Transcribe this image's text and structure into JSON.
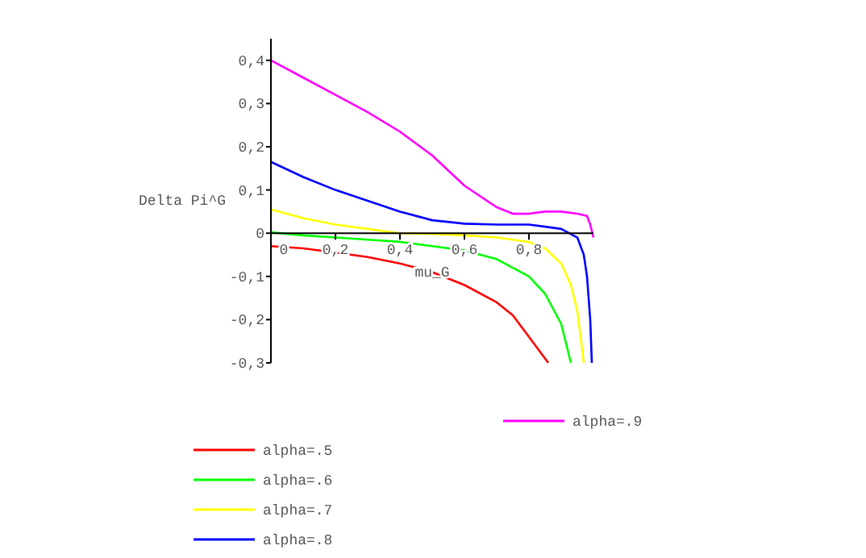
{
  "chart_data": {
    "type": "line",
    "xlabel": "mu_G",
    "ylabel": "Delta Pi^G",
    "xlim": [
      0,
      1
    ],
    "ylim": [
      -0.3,
      0.45
    ],
    "xticks": [
      0,
      {
        "value": 0.2,
        "label": "0,2"
      },
      {
        "value": 0.4,
        "label": "0,4"
      },
      {
        "value": 0.6,
        "label": "0,6"
      },
      {
        "value": 0.8,
        "label": "0,8"
      }
    ],
    "yticks": [
      {
        "value": -0.3,
        "label": "-0,3"
      },
      {
        "value": -0.2,
        "label": "-0,2"
      },
      {
        "value": -0.1,
        "label": "-0,1"
      },
      0,
      {
        "value": 0.1,
        "label": "0,1"
      },
      {
        "value": 0.2,
        "label": "0,2"
      },
      {
        "value": 0.3,
        "label": "0,3"
      },
      {
        "value": 0.4,
        "label": "0,4"
      }
    ],
    "grid": false,
    "legend": "bottom",
    "marker": "none",
    "line_style": "solid",
    "series": [
      {
        "name": "alpha=.5",
        "color": "#ff0000",
        "x": [
          0,
          0.1,
          0.2,
          0.3,
          0.4,
          0.5,
          0.6,
          0.7,
          0.75,
          0.8,
          0.86
        ],
        "values": [
          -0.03,
          -0.035,
          -0.045,
          -0.055,
          -0.07,
          -0.09,
          -0.12,
          -0.16,
          -0.19,
          -0.24,
          -0.3
        ]
      },
      {
        "name": "alpha=.6",
        "color": "#00ff00",
        "x": [
          0,
          0.1,
          0.2,
          0.3,
          0.4,
          0.5,
          0.6,
          0.7,
          0.8,
          0.85,
          0.9,
          0.93
        ],
        "values": [
          0.002,
          -0.005,
          -0.01,
          -0.015,
          -0.02,
          -0.03,
          -0.04,
          -0.06,
          -0.1,
          -0.14,
          -0.21,
          -0.3
        ]
      },
      {
        "name": "alpha=.7",
        "color": "#ffff00",
        "x": [
          0,
          0.1,
          0.2,
          0.3,
          0.4,
          0.5,
          0.6,
          0.7,
          0.8,
          0.85,
          0.9,
          0.93,
          0.95,
          0.97
        ],
        "values": [
          0.055,
          0.035,
          0.02,
          0.01,
          0,
          -0.002,
          -0.005,
          -0.01,
          -0.02,
          -0.035,
          -0.07,
          -0.12,
          -0.18,
          -0.3
        ]
      },
      {
        "name": "alpha=.8",
        "color": "#0000ff",
        "x": [
          0,
          0.1,
          0.2,
          0.3,
          0.4,
          0.5,
          0.6,
          0.7,
          0.8,
          0.85,
          0.9,
          0.95,
          0.97,
          0.98,
          0.99,
          0.995
        ],
        "values": [
          0.165,
          0.13,
          0.1,
          0.075,
          0.05,
          0.03,
          0.022,
          0.02,
          0.02,
          0.015,
          0.01,
          -0.01,
          -0.05,
          -0.1,
          -0.2,
          -0.3
        ]
      },
      {
        "name": "alpha=.9",
        "color": "#ff00ff",
        "x": [
          0,
          0.1,
          0.2,
          0.3,
          0.4,
          0.5,
          0.6,
          0.7,
          0.75,
          0.8,
          0.85,
          0.9,
          0.95,
          0.98,
          0.99,
          1
        ],
        "values": [
          0.4,
          0.36,
          0.32,
          0.28,
          0.235,
          0.18,
          0.11,
          0.06,
          0.045,
          0.045,
          0.05,
          0.05,
          0.045,
          0.04,
          0.02,
          -0.01
        ]
      }
    ]
  }
}
